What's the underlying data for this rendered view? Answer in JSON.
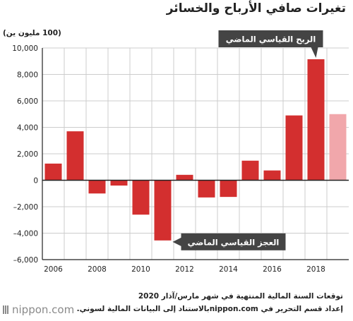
{
  "title": "تغيرات صافي الأرباح والخسائر",
  "unit_label": "(100 مليون ين)",
  "colors": {
    "bar": "#d32f2f",
    "forecast": "#f1a7ab",
    "callout_bg": "#444444",
    "grid": "#cccccc"
  },
  "chart_data": {
    "type": "bar",
    "title": "تغيرات صافي الأرباح والخسائر",
    "ylabel": "(100 مليون ين)",
    "xlabel": "",
    "ylim": [
      -6000,
      10000
    ],
    "yticks": [
      10000,
      8000,
      6000,
      4000,
      2000,
      0,
      -2000,
      -4000,
      -6000
    ],
    "ytick_labels": [
      "10,000",
      "8,000",
      "6,000",
      "4,000",
      "2,000",
      "0",
      "–2,000",
      "–4,000",
      "–6,000"
    ],
    "categories": [
      "2006",
      "2007",
      "2008",
      "2009",
      "2010",
      "2011",
      "2012",
      "2013",
      "2014",
      "2015",
      "2016",
      "2017",
      "2018",
      "2019"
    ],
    "xtick_labels": [
      "2006",
      "2008",
      "2010",
      "2012",
      "2014",
      "2016",
      "2018"
    ],
    "values": [
      1260,
      3700,
      -1000,
      -400,
      -2600,
      -4550,
      410,
      -1300,
      -1260,
      1480,
      740,
      4900,
      9150,
      5000
    ],
    "forecast_index": 13,
    "grid": true,
    "annotations": [
      {
        "text": "الربح القياسي الماضي",
        "category": "2018"
      },
      {
        "text": "العجز القياسي الماضي",
        "category": "2011"
      }
    ]
  },
  "footer": {
    "line1": "توقعات السنة المالية المنتهية في شهر مارس/آذار 2020",
    "line2": "إعداد قسم التحرير في nippon.comبالاستناد إلى البيانات المالية لسوني."
  },
  "brand": {
    "name": "nippon.com"
  }
}
